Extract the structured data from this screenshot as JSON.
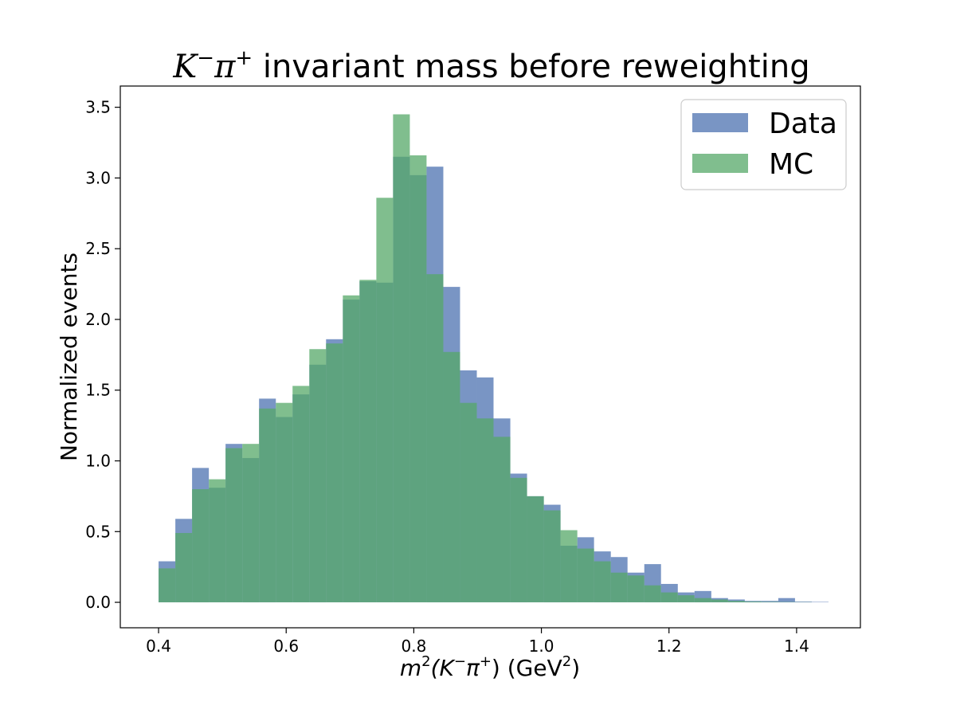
{
  "chart_data": {
    "type": "bar",
    "title": {
      "prefix_math": "K",
      "prefix_sup1": "−",
      "prefix_mid": "π",
      "prefix_sup2": "+",
      "rest": " invariant mass before reweighting"
    },
    "xlabel": {
      "m": "m",
      "sup2": "2",
      "inner": "(K",
      "sup_minus": "−",
      "pi": "π",
      "sup_plus": "+",
      "close": ")",
      "units_open": " (GeV",
      "units_sup": "2",
      "units_close": ")"
    },
    "ylabel": "Normalized events",
    "xlim": [
      0.34,
      1.5
    ],
    "ylim": [
      -0.18,
      3.65
    ],
    "xticks": [
      "0.4",
      "0.6",
      "0.8",
      "1.0",
      "1.2",
      "1.4"
    ],
    "xtick_values": [
      0.4,
      0.6,
      0.8,
      1.0,
      1.2,
      1.4
    ],
    "yticks": [
      "0.0",
      "0.5",
      "1.0",
      "1.5",
      "2.0",
      "2.5",
      "3.0",
      "3.5"
    ],
    "ytick_values": [
      0.0,
      0.5,
      1.0,
      1.5,
      2.0,
      2.5,
      3.0,
      3.5
    ],
    "bin_edges": [
      0.4,
      0.4263,
      0.4525,
      0.4788,
      0.505,
      0.5313,
      0.5575,
      0.5838,
      0.61,
      0.6363,
      0.6625,
      0.6888,
      0.715,
      0.7413,
      0.7675,
      0.7938,
      0.82,
      0.8463,
      0.8725,
      0.8988,
      0.925,
      0.9513,
      0.9775,
      1.0038,
      1.03,
      1.0563,
      1.0825,
      1.1088,
      1.135,
      1.1613,
      1.1875,
      1.2138,
      1.24,
      1.2663,
      1.2925,
      1.3188,
      1.345,
      1.3713,
      1.3975,
      1.4238,
      1.45
    ],
    "series": [
      {
        "name": "Data",
        "color": "#4c72b0",
        "values": [
          0.29,
          0.59,
          0.95,
          0.81,
          1.12,
          1.02,
          1.44,
          1.31,
          1.47,
          1.68,
          1.86,
          2.14,
          2.27,
          2.26,
          3.15,
          3.02,
          3.08,
          2.23,
          1.64,
          1.59,
          1.3,
          0.91,
          0.75,
          0.69,
          0.4,
          0.46,
          0.36,
          0.32,
          0.21,
          0.27,
          0.13,
          0.07,
          0.08,
          0.03,
          0.02,
          0.01,
          0.01,
          0.03,
          0.005,
          0.003
        ]
      },
      {
        "name": "MC",
        "color": "#55a868",
        "values": [
          0.24,
          0.49,
          0.8,
          0.87,
          1.09,
          1.12,
          1.37,
          1.41,
          1.53,
          1.79,
          1.83,
          2.17,
          2.28,
          2.86,
          3.45,
          3.16,
          2.32,
          1.77,
          1.41,
          1.3,
          1.17,
          0.88,
          0.75,
          0.65,
          0.51,
          0.38,
          0.29,
          0.21,
          0.19,
          0.12,
          0.07,
          0.05,
          0.03,
          0.02,
          0.01,
          0.005,
          0.003,
          0.002,
          0.001,
          0.0
        ]
      }
    ],
    "legend_position": "top-right",
    "grid": false
  }
}
